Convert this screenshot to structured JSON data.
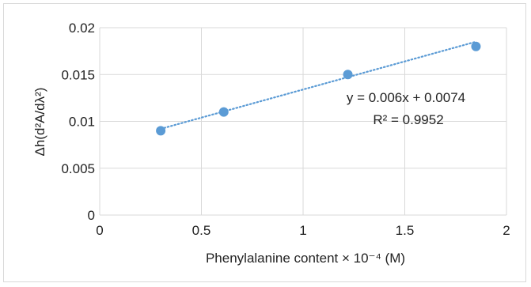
{
  "chart_data": {
    "type": "scatter",
    "xlabel": "Phenylalanine content × 10⁻⁴ (M)",
    "ylabel": "Δh(d²A/dλ²)",
    "xlim": [
      0,
      2
    ],
    "ylim": [
      0,
      0.02
    ],
    "x_ticks": [
      0,
      0.5,
      1,
      1.5,
      2
    ],
    "x_tick_labels": [
      "0",
      "0.5",
      "1",
      "1.5",
      "2"
    ],
    "y_ticks": [
      0,
      0.005,
      0.01,
      0.015,
      0.02
    ],
    "y_tick_labels": [
      "0",
      "0.005",
      "0.01",
      "0.015",
      "0.02"
    ],
    "grid": true,
    "points": [
      {
        "x": 0.3,
        "y": 0.009
      },
      {
        "x": 0.61,
        "y": 0.011
      },
      {
        "x": 1.22,
        "y": 0.015
      },
      {
        "x": 1.85,
        "y": 0.018
      }
    ],
    "trendline": {
      "type": "linear",
      "style": "dotted",
      "slope": 0.006,
      "intercept": 0.0074,
      "x_range": [
        0.3,
        1.85
      ]
    },
    "equation": "y = 0.006x + 0.0074",
    "r_squared": "R² = 0.9952",
    "colors": {
      "points": "#5b9bd5",
      "trendline": "#5b9bd5",
      "grid": "#d9d9d9"
    }
  }
}
